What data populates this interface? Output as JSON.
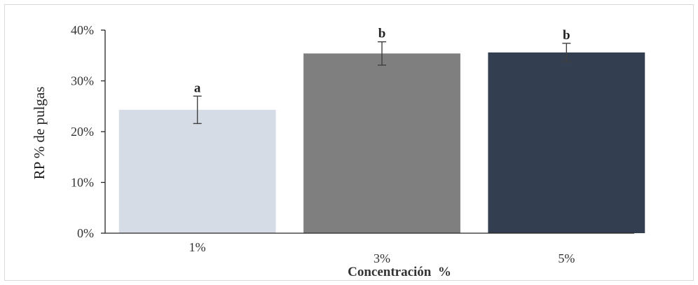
{
  "chart_data": {
    "type": "bar",
    "categories": [
      "1%",
      "3%",
      "5%"
    ],
    "values": [
      24.3,
      35.4,
      35.6
    ],
    "error_bars": [
      2.7,
      2.3,
      1.8
    ],
    "significance_labels": [
      "a",
      "b",
      "b"
    ],
    "bar_colors": [
      "#d6dce5",
      "#7f7f7f",
      "#333f50"
    ],
    "xlabel": "Concentración  %",
    "ylabel": "RP  % de pulgas",
    "ylim": [
      0,
      40
    ],
    "yticks": [
      "0%",
      "10%",
      "20%",
      "30%",
      "40%"
    ],
    "grid": false,
    "legend": "none"
  }
}
